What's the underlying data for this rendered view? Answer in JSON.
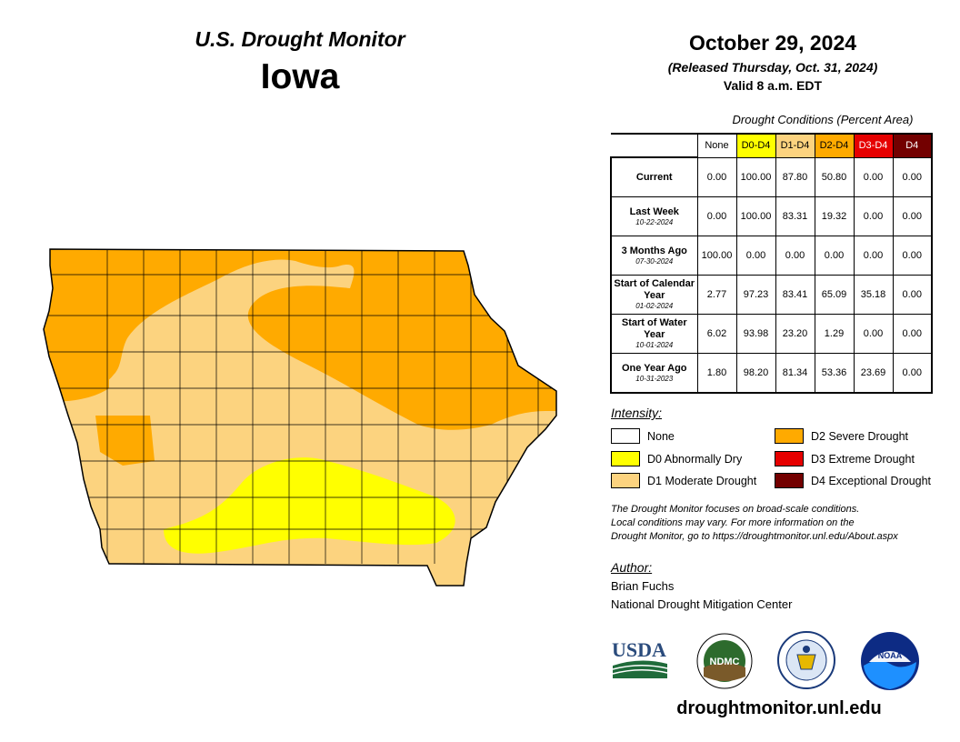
{
  "header": {
    "subtitle": "U.S. Drought Monitor",
    "state": "Iowa",
    "date": "October 29, 2024",
    "released": "(Released Thursday, Oct. 31, 2024)",
    "valid": "Valid 8 a.m. EDT"
  },
  "table": {
    "caption": "Drought Conditions (Percent Area)",
    "columns": [
      {
        "label": "None",
        "bg": "#ffffff",
        "fg": "#000000"
      },
      {
        "label": "D0-D4",
        "bg": "#ffff00",
        "fg": "#000000"
      },
      {
        "label": "D1-D4",
        "bg": "#fcd37f",
        "fg": "#000000"
      },
      {
        "label": "D2-D4",
        "bg": "#ffaa00",
        "fg": "#000000"
      },
      {
        "label": "D3-D4",
        "bg": "#e60000",
        "fg": "#ffffff"
      },
      {
        "label": "D4",
        "bg": "#730000",
        "fg": "#ffffff"
      }
    ],
    "rows": [
      {
        "label": "Current",
        "date": "",
        "values": [
          "0.00",
          "100.00",
          "87.80",
          "50.80",
          "0.00",
          "0.00"
        ]
      },
      {
        "label": "Last Week",
        "date": "10-22-2024",
        "values": [
          "0.00",
          "100.00",
          "83.31",
          "19.32",
          "0.00",
          "0.00"
        ]
      },
      {
        "label": "3 Months Ago",
        "date": "07-30-2024",
        "values": [
          "100.00",
          "0.00",
          "0.00",
          "0.00",
          "0.00",
          "0.00"
        ]
      },
      {
        "label": "Start of Calendar Year",
        "date": "01-02-2024",
        "values": [
          "2.77",
          "97.23",
          "83.41",
          "65.09",
          "35.18",
          "0.00"
        ]
      },
      {
        "label": "Start of Water Year",
        "date": "10-01-2024",
        "values": [
          "6.02",
          "93.98",
          "23.20",
          "1.29",
          "0.00",
          "0.00"
        ]
      },
      {
        "label": "One Year Ago",
        "date": "10-31-2023",
        "values": [
          "1.80",
          "98.20",
          "81.34",
          "53.36",
          "23.69",
          "0.00"
        ]
      }
    ]
  },
  "legend": {
    "title": "Intensity:",
    "items": [
      {
        "label": "None",
        "color": "#ffffff"
      },
      {
        "label": "D0 Abnormally Dry",
        "color": "#ffff00"
      },
      {
        "label": "D1 Moderate Drought",
        "color": "#fcd37f"
      },
      {
        "label": "D2 Severe Drought",
        "color": "#ffaa00"
      },
      {
        "label": "D3 Extreme Drought",
        "color": "#e60000"
      },
      {
        "label": "D4 Exceptional Drought",
        "color": "#730000"
      }
    ]
  },
  "note": {
    "line1": "The Drought Monitor focuses on broad-scale conditions.",
    "line2": "Local conditions may vary. For more information on the",
    "line3": "Drought Monitor, go to https://droughtmonitor.unl.edu/About.aspx"
  },
  "author": {
    "label": "Author:",
    "name": "Brian Fuchs",
    "org": "National Drought Mitigation Center"
  },
  "logos": {
    "usda": "USDA",
    "ndmc": "NDMC",
    "noaa": "NOAA"
  },
  "footer_url": "droughtmonitor.unl.edu"
}
